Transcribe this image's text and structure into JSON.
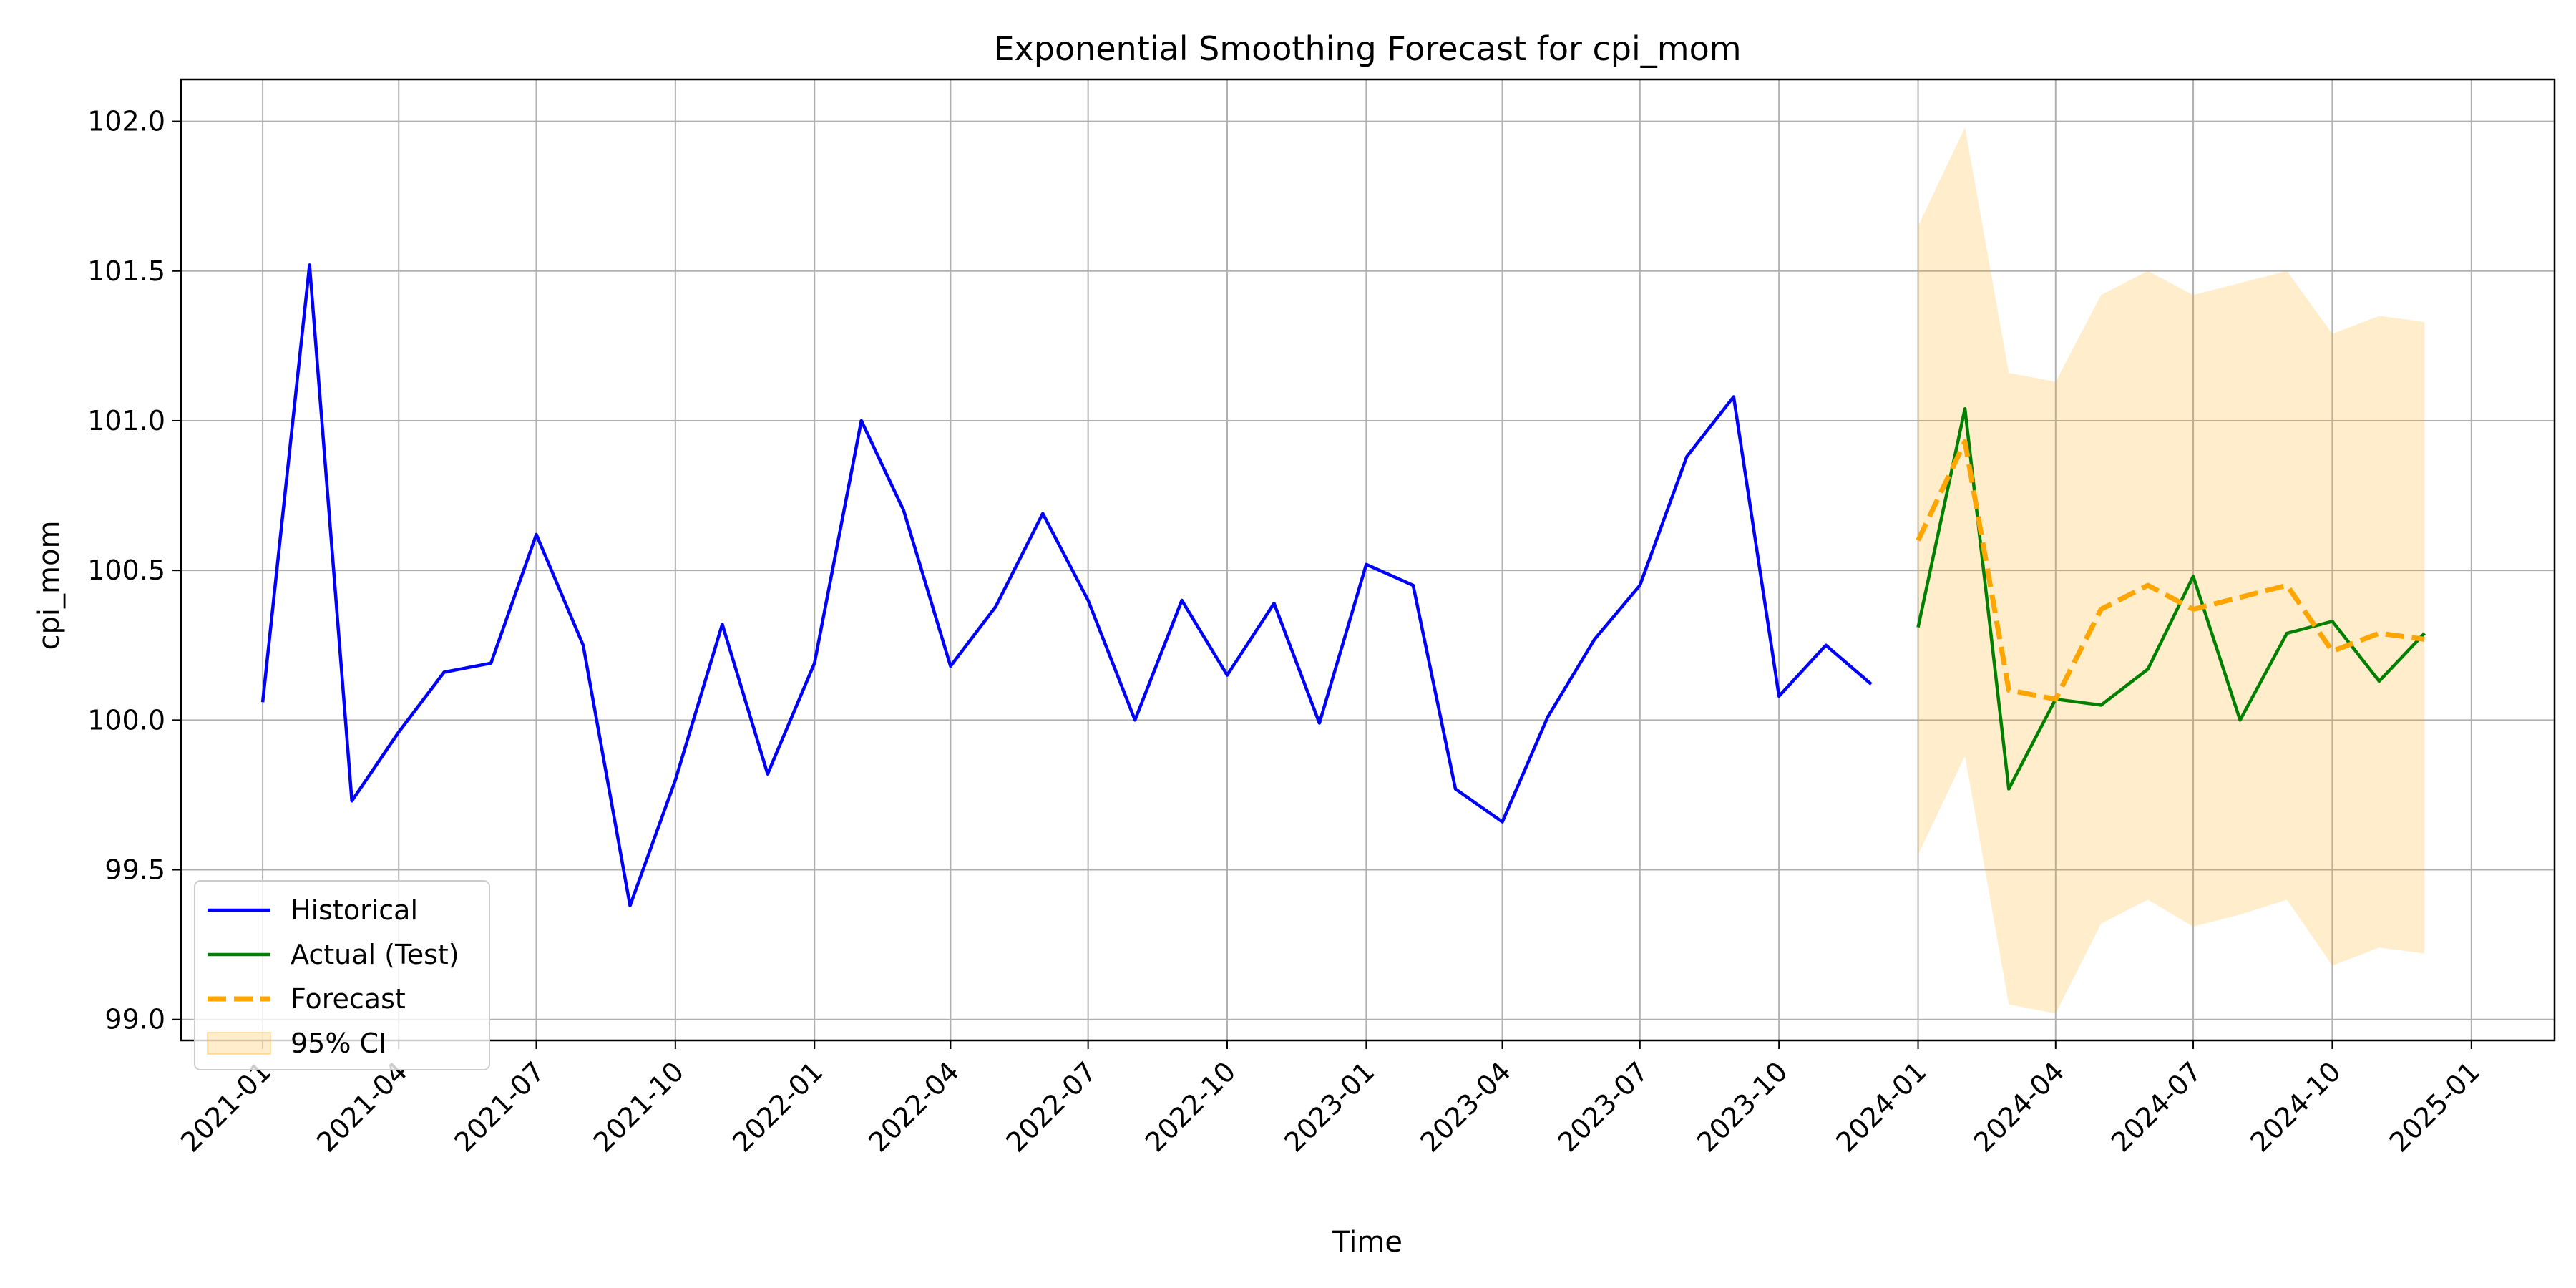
{
  "chart_data": {
    "type": "line",
    "title": "Exponential Smoothing Forecast for cpi_mom",
    "xlabel": "Time",
    "ylabel": "cpi_mom",
    "grid": true,
    "legend_position": "lower-left",
    "xlim": [
      "2020-11-08",
      "2025-02-25"
    ],
    "ylim": [
      98.93,
      102.14
    ],
    "x_ticks": [
      "2021-01",
      "2021-04",
      "2021-07",
      "2021-10",
      "2022-01",
      "2022-04",
      "2022-07",
      "2022-10",
      "2023-01",
      "2023-04",
      "2023-07",
      "2023-10",
      "2024-01",
      "2024-04",
      "2024-07",
      "2024-10",
      "2025-01"
    ],
    "y_ticks": [
      "99.0",
      "99.5",
      "100.0",
      "100.5",
      "101.0",
      "101.5",
      "102.0"
    ],
    "series": [
      {
        "name": "Historical",
        "color": "#0000ff",
        "style": "solid",
        "x": [
          "2021-01-01",
          "2021-02-01",
          "2021-03-01",
          "2021-04-01",
          "2021-05-01",
          "2021-06-01",
          "2021-07-01",
          "2021-08-01",
          "2021-09-01",
          "2021-10-01",
          "2021-11-01",
          "2021-12-01",
          "2022-01-01",
          "2022-02-01",
          "2022-03-01",
          "2022-04-01",
          "2022-05-01",
          "2022-06-01",
          "2022-07-01",
          "2022-08-01",
          "2022-09-01",
          "2022-10-01",
          "2022-11-01",
          "2022-12-01",
          "2023-01-01",
          "2023-02-01",
          "2023-03-01",
          "2023-04-01",
          "2023-05-01",
          "2023-06-01",
          "2023-07-01",
          "2023-08-01",
          "2023-09-01",
          "2023-10-01",
          "2023-11-01",
          "2023-12-01"
        ],
        "values": [
          100.06,
          101.52,
          99.73,
          99.96,
          100.16,
          100.19,
          100.62,
          100.25,
          99.38,
          99.8,
          100.32,
          99.82,
          100.19,
          101.0,
          100.7,
          100.18,
          100.38,
          100.69,
          100.4,
          100.0,
          100.4,
          100.15,
          100.39,
          99.99,
          100.52,
          100.45,
          99.77,
          99.66,
          100.01,
          100.27,
          100.45,
          100.88,
          101.08,
          100.08,
          100.25,
          100.12
        ]
      },
      {
        "name": "Actual (Test)",
        "color": "#008000",
        "style": "solid",
        "x": [
          "2024-01-01",
          "2024-02-01",
          "2024-03-01",
          "2024-04-01",
          "2024-05-01",
          "2024-06-01",
          "2024-07-01",
          "2024-08-01",
          "2024-09-01",
          "2024-10-01",
          "2024-11-01",
          "2024-12-01"
        ],
        "values": [
          100.31,
          101.04,
          99.77,
          100.07,
          100.05,
          100.17,
          100.48,
          100.0,
          100.29,
          100.33,
          100.13,
          100.29
        ]
      },
      {
        "name": "Forecast",
        "color": "#ffa500",
        "style": "dashed",
        "x": [
          "2024-01-01",
          "2024-02-01",
          "2024-03-01",
          "2024-04-01",
          "2024-05-01",
          "2024-06-01",
          "2024-07-01",
          "2024-08-01",
          "2024-09-01",
          "2024-10-01",
          "2024-11-01",
          "2024-12-01"
        ],
        "values": [
          100.6,
          100.93,
          100.1,
          100.07,
          100.37,
          100.45,
          100.37,
          100.41,
          100.45,
          100.23,
          100.29,
          100.27
        ]
      }
    ],
    "band": {
      "name": "95% CI",
      "color": "#ffa500",
      "x": [
        "2024-01-01",
        "2024-02-01",
        "2024-03-01",
        "2024-04-01",
        "2024-05-01",
        "2024-06-01",
        "2024-07-01",
        "2024-08-01",
        "2024-09-01",
        "2024-10-01",
        "2024-11-01",
        "2024-12-01"
      ],
      "lower": [
        99.55,
        99.88,
        99.05,
        99.02,
        99.32,
        99.4,
        99.31,
        99.35,
        99.4,
        99.18,
        99.24,
        99.22
      ],
      "upper": [
        101.65,
        101.98,
        101.16,
        101.13,
        101.42,
        101.5,
        101.42,
        101.46,
        101.5,
        101.29,
        101.35,
        101.33
      ]
    }
  }
}
